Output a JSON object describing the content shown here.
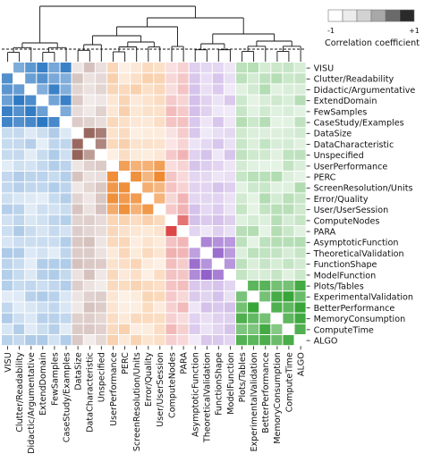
{
  "chart_data": {
    "type": "heatmap",
    "labels": [
      "VISU",
      "Clutter/Readability",
      "Didactic/Argumentative",
      "ExtendDomain",
      "FewSamples",
      "CaseStudy/Examples",
      "DataSize",
      "DataCharacteristic",
      "Unspecified",
      "UserPerformance",
      "PERC",
      "ScreenResolution/Units",
      "Error/Quality",
      "User/UserSession",
      "ComputeNodes",
      "PARA",
      "AsymptoticFunction",
      "TheoreticalValidation",
      "FunctionShape",
      "ModelFunction",
      "Plots/Tables",
      "ExperimentalValidation",
      "BetterPerformance",
      "MemoryConsumption",
      "ComputeTime",
      "ALGO"
    ],
    "groups": [
      {
        "start": 0,
        "end": 5,
        "color": "#1f6fbf"
      },
      {
        "start": 6,
        "end": 8,
        "color": "#8c564b"
      },
      {
        "start": 9,
        "end": 13,
        "color": "#ee8020"
      },
      {
        "start": 14,
        "end": 15,
        "color": "#d62728"
      },
      {
        "start": 16,
        "end": 19,
        "color": "#8b55c6"
      },
      {
        "start": 20,
        "end": 25,
        "color": "#2ca02c"
      }
    ],
    "value_range": [
      -1,
      1
    ],
    "legend": {
      "title": "Correlation coefficient",
      "min_label": "-1",
      "max_label": "+1",
      "placement": "top-right",
      "levels": [
        -1,
        -0.6,
        -0.2,
        0.2,
        0.6,
        1
      ]
    },
    "dendrogram": true,
    "grid": false
  }
}
